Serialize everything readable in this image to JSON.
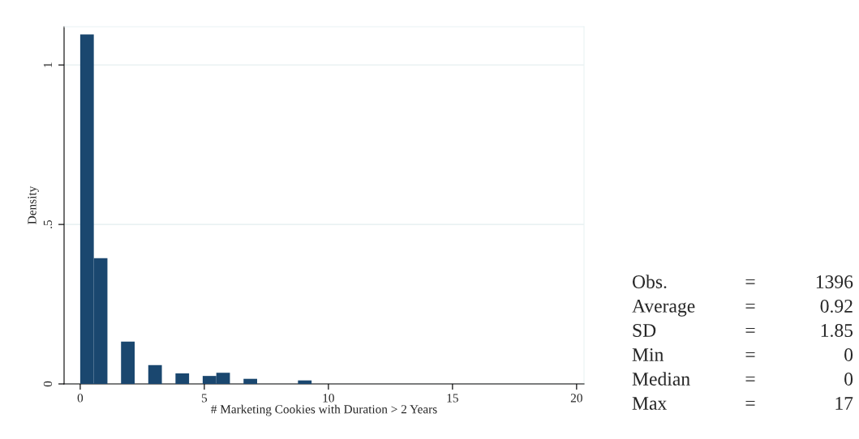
{
  "chart_data": {
    "type": "histogram",
    "xlabel": "# Marketing Cookies with Duration > 2 Years",
    "ylabel": "Density",
    "bins": [
      0,
      0.548,
      1.097,
      1.645,
      2.194,
      2.742,
      3.29,
      3.839,
      4.387,
      4.935,
      5.484,
      6.032,
      6.581,
      7.129,
      7.677,
      8.226,
      8.774,
      9.323,
      9.871,
      10.419,
      10.968,
      11.516,
      12.065,
      12.613,
      13.161,
      13.71,
      14.258,
      14.806,
      15.355,
      15.903,
      16.452,
      17
    ],
    "values": [
      1.096,
      0.394,
      0,
      0.133,
      0,
      0.059,
      0,
      0.033,
      0,
      0.025,
      0.035,
      0,
      0.016,
      0,
      0,
      0,
      0.011,
      0,
      0,
      0,
      0,
      0,
      0,
      0,
      0,
      0,
      0,
      0,
      0,
      0,
      0
    ],
    "color": "#1a476f",
    "xlim": [
      -0.65,
      20.3
    ],
    "ylim": [
      0,
      1.12
    ],
    "xticks": [
      0,
      5,
      10,
      15,
      20
    ],
    "yticks": [
      0,
      {
        "value": 0.5,
        "label": ".5"
      },
      1
    ],
    "grid": "y",
    "annotations": [
      "Obs. = 1396",
      "Average = 0.92",
      "SD = 1.85",
      "Min = 0",
      "Median = 0",
      "Max = 17"
    ]
  }
}
